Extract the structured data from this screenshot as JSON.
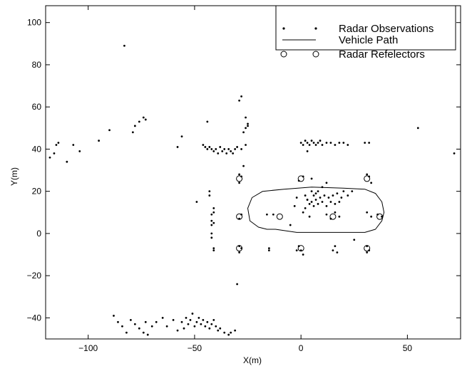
{
  "chart_data": {
    "type": "scatter",
    "title": "",
    "xlabel": "X(m)",
    "ylabel": "Y(m)",
    "xlim": [
      -120,
      75
    ],
    "ylim": [
      -50,
      108
    ],
    "xticks": [
      -100,
      -50,
      0,
      50
    ],
    "yticks": [
      -40,
      -20,
      0,
      20,
      40,
      60,
      80,
      100
    ],
    "xtick_labels": [
      "−100",
      "−50",
      "0",
      "50"
    ],
    "ytick_labels": [
      "−40",
      "−20",
      "0",
      "20",
      "40",
      "60",
      "80",
      "100"
    ],
    "grid": false,
    "legend_position": "top-right",
    "legend": [
      "Radar Observations",
      "Vehicle Path",
      "Radar Refelectors"
    ],
    "series": [
      {
        "name": "Radar Observations",
        "marker": "dot",
        "points": [
          [
            -118,
            36
          ],
          [
            -116,
            38
          ],
          [
            -115,
            42
          ],
          [
            -114,
            43
          ],
          [
            -110,
            34
          ],
          [
            -107,
            42
          ],
          [
            -104,
            39
          ],
          [
            -95,
            44
          ],
          [
            -90,
            49
          ],
          [
            -83,
            89
          ],
          [
            -79,
            48
          ],
          [
            -78,
            51
          ],
          [
            -76,
            53
          ],
          [
            -74,
            55
          ],
          [
            -73,
            54
          ],
          [
            -58,
            41
          ],
          [
            -56,
            46
          ],
          [
            -49,
            15
          ],
          [
            -44,
            53
          ],
          [
            -43,
            20
          ],
          [
            -43,
            18
          ],
          [
            -42,
            9
          ],
          [
            -42,
            6
          ],
          [
            -42,
            4
          ],
          [
            -42,
            0
          ],
          [
            -42,
            -2
          ],
          [
            -41,
            10
          ],
          [
            -41,
            12
          ],
          [
            -41,
            5
          ],
          [
            -41,
            -8
          ],
          [
            -41,
            -7
          ],
          [
            -46,
            42
          ],
          [
            -45,
            41
          ],
          [
            -44,
            40
          ],
          [
            -43,
            41
          ],
          [
            -42,
            40
          ],
          [
            -41,
            39
          ],
          [
            -40,
            40
          ],
          [
            -39,
            38
          ],
          [
            -38,
            41
          ],
          [
            -37,
            39
          ],
          [
            -36,
            40
          ],
          [
            -35,
            38
          ],
          [
            -34,
            40
          ],
          [
            -33,
            39
          ],
          [
            -32,
            38
          ],
          [
            -31,
            40
          ],
          [
            -30,
            41
          ],
          [
            -28,
            40
          ],
          [
            -26,
            42
          ],
          [
            -27,
            32
          ],
          [
            -29,
            63
          ],
          [
            -28,
            65
          ],
          [
            -26,
            55
          ],
          [
            -25,
            52
          ],
          [
            -26,
            50
          ],
          [
            -27,
            48
          ],
          [
            -25,
            51
          ],
          [
            -29,
            28
          ],
          [
            -29,
            24
          ],
          [
            -28,
            27
          ],
          [
            -28,
            9
          ],
          [
            -29,
            7
          ],
          [
            -29,
            -6
          ],
          [
            -29,
            -9
          ],
          [
            -28,
            -7
          ],
          [
            -30,
            -24
          ],
          [
            -15,
            -7
          ],
          [
            -15,
            -8
          ],
          [
            -2,
            -8
          ],
          [
            -1,
            -6
          ],
          [
            0,
            -8
          ],
          [
            1,
            -10
          ],
          [
            -1,
            25
          ],
          [
            1,
            27
          ],
          [
            0,
            43
          ],
          [
            1,
            42
          ],
          [
            2,
            44
          ],
          [
            3,
            43
          ],
          [
            4,
            42
          ],
          [
            5,
            44
          ],
          [
            6,
            43
          ],
          [
            7,
            42
          ],
          [
            8,
            43
          ],
          [
            9,
            44
          ],
          [
            10,
            42
          ],
          [
            12,
            43
          ],
          [
            14,
            43
          ],
          [
            16,
            42
          ],
          [
            18,
            43
          ],
          [
            20,
            43
          ],
          [
            22,
            42
          ],
          [
            30,
            43
          ],
          [
            32,
            43
          ],
          [
            3,
            39
          ],
          [
            2,
            18
          ],
          [
            3,
            16
          ],
          [
            4,
            14
          ],
          [
            5,
            20
          ],
          [
            5,
            15
          ],
          [
            6,
            18
          ],
          [
            6,
            13
          ],
          [
            7,
            16
          ],
          [
            7,
            19
          ],
          [
            8,
            14
          ],
          [
            8,
            20
          ],
          [
            9,
            17
          ],
          [
            10,
            15
          ],
          [
            11,
            18
          ],
          [
            12,
            13
          ],
          [
            13,
            17
          ],
          [
            14,
            15
          ],
          [
            15,
            18
          ],
          [
            16,
            14
          ],
          [
            17,
            19
          ],
          [
            18,
            15
          ],
          [
            19,
            17
          ],
          [
            20,
            20
          ],
          [
            22,
            18
          ],
          [
            24,
            20
          ],
          [
            10,
            22
          ],
          [
            12,
            24
          ],
          [
            5,
            26
          ],
          [
            -2,
            17
          ],
          [
            -3,
            13
          ],
          [
            1,
            10
          ],
          [
            2,
            12
          ],
          [
            3,
            16
          ],
          [
            16,
            10
          ],
          [
            18,
            8
          ],
          [
            4,
            8
          ],
          [
            -5,
            4
          ],
          [
            14,
            7
          ],
          [
            12,
            9
          ],
          [
            -16,
            9
          ],
          [
            -13,
            9
          ],
          [
            31,
            28
          ],
          [
            32,
            27
          ],
          [
            33,
            24
          ],
          [
            31,
            10
          ],
          [
            33,
            8
          ],
          [
            31,
            -6
          ],
          [
            31,
            -9
          ],
          [
            32,
            -8
          ],
          [
            16,
            -6
          ],
          [
            17,
            -9
          ],
          [
            15,
            -8
          ],
          [
            25,
            -3
          ],
          [
            36,
            9
          ],
          [
            38,
            8
          ],
          [
            55,
            50
          ],
          [
            72,
            38
          ],
          [
            -88,
            -39
          ],
          [
            -86,
            -42
          ],
          [
            -84,
            -44
          ],
          [
            -82,
            -47
          ],
          [
            -80,
            -41
          ],
          [
            -78,
            -43
          ],
          [
            -76,
            -45
          ],
          [
            -74,
            -47
          ],
          [
            -73,
            -42
          ],
          [
            -70,
            -44
          ],
          [
            -68,
            -42
          ],
          [
            -65,
            -40
          ],
          [
            -63,
            -44
          ],
          [
            -60,
            -41
          ],
          [
            -58,
            -46
          ],
          [
            -56,
            -42
          ],
          [
            -55,
            -45
          ],
          [
            -54,
            -40
          ],
          [
            -53,
            -43
          ],
          [
            -52,
            -41
          ],
          [
            -51,
            -38
          ],
          [
            -50,
            -44
          ],
          [
            -49,
            -42
          ],
          [
            -48,
            -40
          ],
          [
            -47,
            -43
          ],
          [
            -46,
            -41
          ],
          [
            -45,
            -44
          ],
          [
            -44,
            -42
          ],
          [
            -43,
            -45
          ],
          [
            -42,
            -43
          ],
          [
            -41,
            -41
          ],
          [
            -40,
            -44
          ],
          [
            -39,
            -46
          ],
          [
            -38,
            -45
          ],
          [
            -36,
            -47
          ],
          [
            -34,
            -48
          ],
          [
            -33,
            -47
          ],
          [
            -31,
            -46
          ],
          [
            -72,
            -48
          ]
        ]
      },
      {
        "name": "Vehicle Path",
        "marker": "line",
        "points": [
          [
            -25,
            12
          ],
          [
            -23,
            17
          ],
          [
            -18,
            20
          ],
          [
            -8,
            21
          ],
          [
            5,
            22
          ],
          [
            20,
            21.5
          ],
          [
            30,
            21
          ],
          [
            35,
            19
          ],
          [
            38,
            15
          ],
          [
            39,
            10
          ],
          [
            38,
            6
          ],
          [
            35,
            2
          ],
          [
            30,
            0.5
          ],
          [
            20,
            0.5
          ],
          [
            8,
            0.5
          ],
          [
            -2,
            0.5
          ],
          [
            -12,
            2
          ],
          [
            -16,
            2
          ],
          [
            -20,
            3
          ],
          [
            -24,
            6
          ],
          [
            -25,
            12
          ]
        ]
      },
      {
        "name": "Radar Refelectors",
        "marker": "circle",
        "points": [
          [
            -29,
            8
          ],
          [
            -10,
            8
          ],
          [
            15,
            8
          ],
          [
            37,
            8
          ],
          [
            -29,
            26
          ],
          [
            0,
            26
          ],
          [
            31,
            26
          ],
          [
            -29,
            -7
          ],
          [
            0,
            -7
          ],
          [
            31,
            -7
          ]
        ]
      }
    ]
  }
}
